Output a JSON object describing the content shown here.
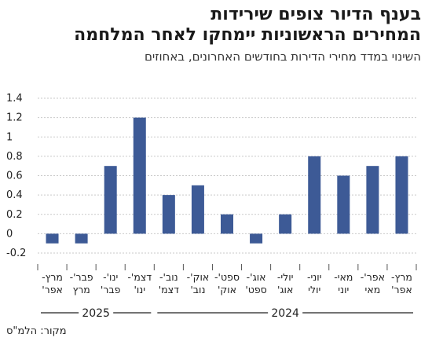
{
  "header": {
    "title_line1": "בענף הדיור צופים שירידות",
    "title_line2": "המחירים הראשוניות יימחקו לאחר המלחמה",
    "subtitle": "השינוי במדד מחירי הדירות בחודשים האחרונים, באחוזים"
  },
  "footer": {
    "source": "מקור: הלמ\"ס"
  },
  "colors": {
    "bar": "#3d5a96",
    "grid": "#c9c9c9",
    "axis": "#555555"
  },
  "chart_data": {
    "type": "bar",
    "title": "",
    "xlabel": "",
    "ylabel": "",
    "ylim": [
      -0.2,
      1.4
    ],
    "yticks": [
      "1.4",
      "1.2",
      "1",
      "0.8",
      "0.6",
      "0.4",
      "0.2",
      "0",
      "-0.2"
    ],
    "ytick_values": [
      1.4,
      1.2,
      1.0,
      0.8,
      0.6,
      0.4,
      0.2,
      0.0,
      -0.2
    ],
    "grid": true,
    "categories": [
      [
        "מרץ-",
        "אפר'"
      ],
      [
        "אפר'-",
        "מאי"
      ],
      [
        "מאי-",
        "יוני"
      ],
      [
        "יוני-",
        "יולי"
      ],
      [
        "יולי-",
        "אוג'"
      ],
      [
        "אוג'-",
        "ספט'"
      ],
      [
        "ספט'-",
        "אוק'"
      ],
      [
        "אוק'-",
        "נוב'"
      ],
      [
        "נוב'-",
        "דצמ'"
      ],
      [
        "דצמ'-",
        "ינו'"
      ],
      [
        "ינו'-",
        "פבר'"
      ],
      [
        "פבר'-",
        "מרץ"
      ],
      [
        "מרץ-",
        "אפר'"
      ]
    ],
    "values": [
      0.8,
      0.7,
      0.6,
      0.8,
      0.2,
      -0.1,
      0.2,
      0.5,
      0.4,
      1.2,
      0.7,
      -0.1,
      -0.1
    ],
    "year_groups": [
      {
        "label": "2024",
        "start": 0,
        "end": 8
      },
      {
        "label": "2025",
        "start": 9,
        "end": 12
      }
    ]
  }
}
